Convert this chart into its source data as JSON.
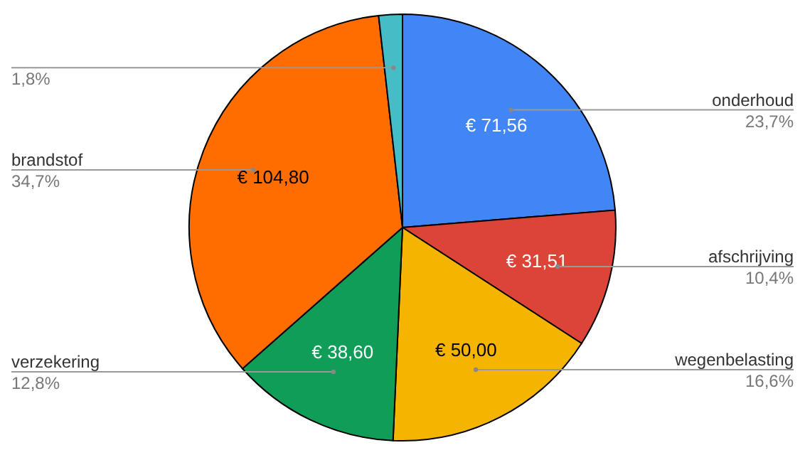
{
  "chart_data": {
    "type": "pie",
    "categories": [
      "onderhoud",
      "afschrijving",
      "wegenbelasting",
      "verzekering",
      "brandstof",
      null
    ],
    "values": [
      71.56,
      31.51,
      50.0,
      38.6,
      104.8,
      5.4
    ],
    "value_labels": [
      "€ 71,56",
      "€ 31,51",
      "€ 50,00",
      "€ 38,60",
      "€ 104,80",
      null
    ],
    "annotations": [
      "23,7%",
      "10,4%",
      "16,6%",
      "12,8%",
      "34,7%",
      "1,8%"
    ],
    "colors": [
      "#4285f4",
      "#db4437",
      "#f4b400",
      "#0f9d58",
      "#ff6d01",
      "#46bdc6"
    ]
  }
}
